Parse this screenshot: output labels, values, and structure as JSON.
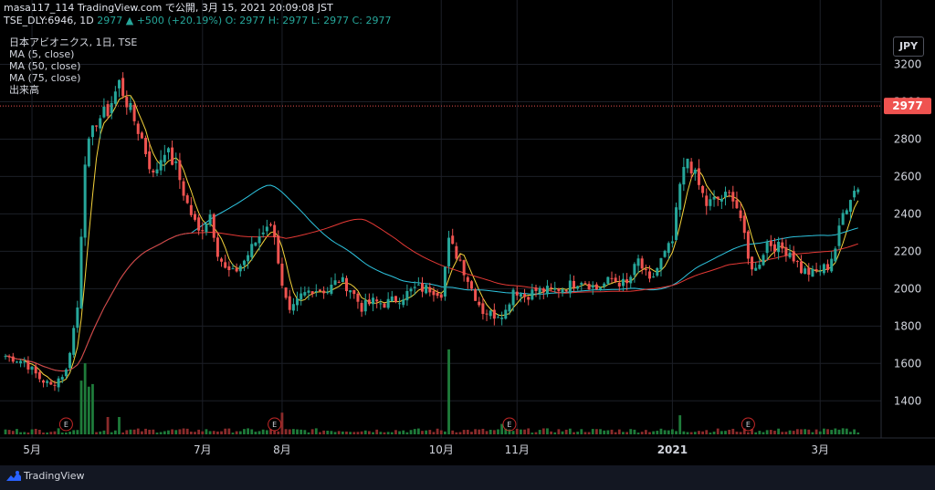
{
  "header": {
    "line1": "masa117_114 TradingView.com で公開, 3月 15, 2021 20:09:08 JST",
    "symbol": "TSE_DLY:6946, 1D",
    "last": "2977",
    "change": "+500 (+20.19%)",
    "ohlc": "O: 2977 H: 2977 L: 2977 C: 2977"
  },
  "legend": {
    "title": "日本アビオニクス, 1日, TSE",
    "ma5": "MA (5, close)",
    "ma50": "MA (50, close)",
    "ma75": "MA (75, close)",
    "volume": "出来高"
  },
  "currency": "JPY",
  "price_tag": "2977",
  "footer": {
    "brand": "TradingView"
  },
  "colors": {
    "up": "#26a69a",
    "down": "#ef5350",
    "ma5": "#f5d33b",
    "ma50": "#2ec5e0",
    "ma75": "#e53935",
    "price_line": "#ef5350"
  },
  "chart_data": {
    "type": "candlestick",
    "xlabel": "",
    "ylabel": "",
    "ylim": [
      1250,
      3300
    ],
    "yticks": [
      1400,
      1600,
      1800,
      2000,
      2200,
      2400,
      2600,
      2800,
      3000,
      3200
    ],
    "xticks": [
      {
        "i": 7,
        "label": "5月"
      },
      {
        "i": 52,
        "label": "7月"
      },
      {
        "i": 73,
        "label": "8月"
      },
      {
        "i": 115,
        "label": "10月"
      },
      {
        "i": 135,
        "label": "11月"
      },
      {
        "i": 176,
        "label": "2021"
      },
      {
        "i": 215,
        "label": "3月"
      }
    ],
    "earnings_markers": [
      {
        "i": 16,
        "label": "E"
      },
      {
        "i": 71,
        "label": "E"
      },
      {
        "i": 133,
        "label": "E"
      },
      {
        "i": 196,
        "label": "E"
      }
    ],
    "last_price": 2977,
    "keyframes": [
      [
        0,
        1640
      ],
      [
        5,
        1610
      ],
      [
        9,
        1520
      ],
      [
        12,
        1480
      ],
      [
        16,
        1560
      ],
      [
        19,
        1900
      ],
      [
        21,
        2700
      ],
      [
        24,
        2900
      ],
      [
        27,
        2950
      ],
      [
        30,
        3100
      ],
      [
        33,
        2950
      ],
      [
        36,
        2800
      ],
      [
        39,
        2600
      ],
      [
        42,
        2750
      ],
      [
        45,
        2650
      ],
      [
        48,
        2450
      ],
      [
        51,
        2300
      ],
      [
        54,
        2400
      ],
      [
        56,
        2200
      ],
      [
        58,
        2100
      ],
      [
        60,
        2080
      ],
      [
        63,
        2150
      ],
      [
        66,
        2250
      ],
      [
        69,
        2350
      ],
      [
        71,
        2300
      ],
      [
        73,
        2000
      ],
      [
        75,
        1860
      ],
      [
        78,
        1960
      ],
      [
        81,
        2000
      ],
      [
        85,
        1990
      ],
      [
        88,
        2050
      ],
      [
        91,
        2000
      ],
      [
        94,
        1900
      ],
      [
        97,
        1930
      ],
      [
        100,
        1920
      ],
      [
        104,
        1950
      ],
      [
        108,
        2000
      ],
      [
        112,
        2000
      ],
      [
        115,
        1980
      ],
      [
        117,
        2250
      ],
      [
        120,
        2150
      ],
      [
        123,
        2000
      ],
      [
        126,
        1880
      ],
      [
        129,
        1860
      ],
      [
        132,
        1880
      ],
      [
        134,
        2000
      ],
      [
        137,
        1960
      ],
      [
        140,
        1990
      ],
      [
        144,
        1990
      ],
      [
        148,
        2010
      ],
      [
        152,
        2050
      ],
      [
        156,
        2000
      ],
      [
        160,
        2050
      ],
      [
        164,
        2020
      ],
      [
        167,
        2150
      ],
      [
        170,
        2030
      ],
      [
        173,
        2150
      ],
      [
        176,
        2250
      ],
      [
        178,
        2550
      ],
      [
        180,
        2700
      ],
      [
        182,
        2600
      ],
      [
        185,
        2450
      ],
      [
        188,
        2480
      ],
      [
        192,
        2500
      ],
      [
        194,
        2380
      ],
      [
        196,
        2150
      ],
      [
        198,
        2100
      ],
      [
        201,
        2250
      ],
      [
        204,
        2220
      ],
      [
        207,
        2200
      ],
      [
        210,
        2100
      ],
      [
        213,
        2080
      ],
      [
        215,
        2100
      ],
      [
        217,
        2120
      ],
      [
        219,
        2220
      ],
      [
        221,
        2400
      ],
      [
        223,
        2500
      ],
      [
        225,
        2550
      ]
    ],
    "volume_spikes": [
      [
        20,
        0.62
      ],
      [
        21,
        0.82
      ],
      [
        22,
        0.55
      ],
      [
        23,
        0.58
      ],
      [
        27,
        0.2
      ],
      [
        30,
        0.2
      ],
      [
        73,
        0.25
      ],
      [
        117,
        0.98
      ],
      [
        131,
        0.12
      ],
      [
        178,
        0.22
      ],
      [
        217,
        0.06
      ],
      [
        221,
        0.07
      ]
    ],
    "series": [
      {
        "name": "MA (5, close)",
        "window": 5
      },
      {
        "name": "MA (50, close)",
        "window": 50
      },
      {
        "name": "MA (75, close)",
        "window": 75
      }
    ]
  }
}
